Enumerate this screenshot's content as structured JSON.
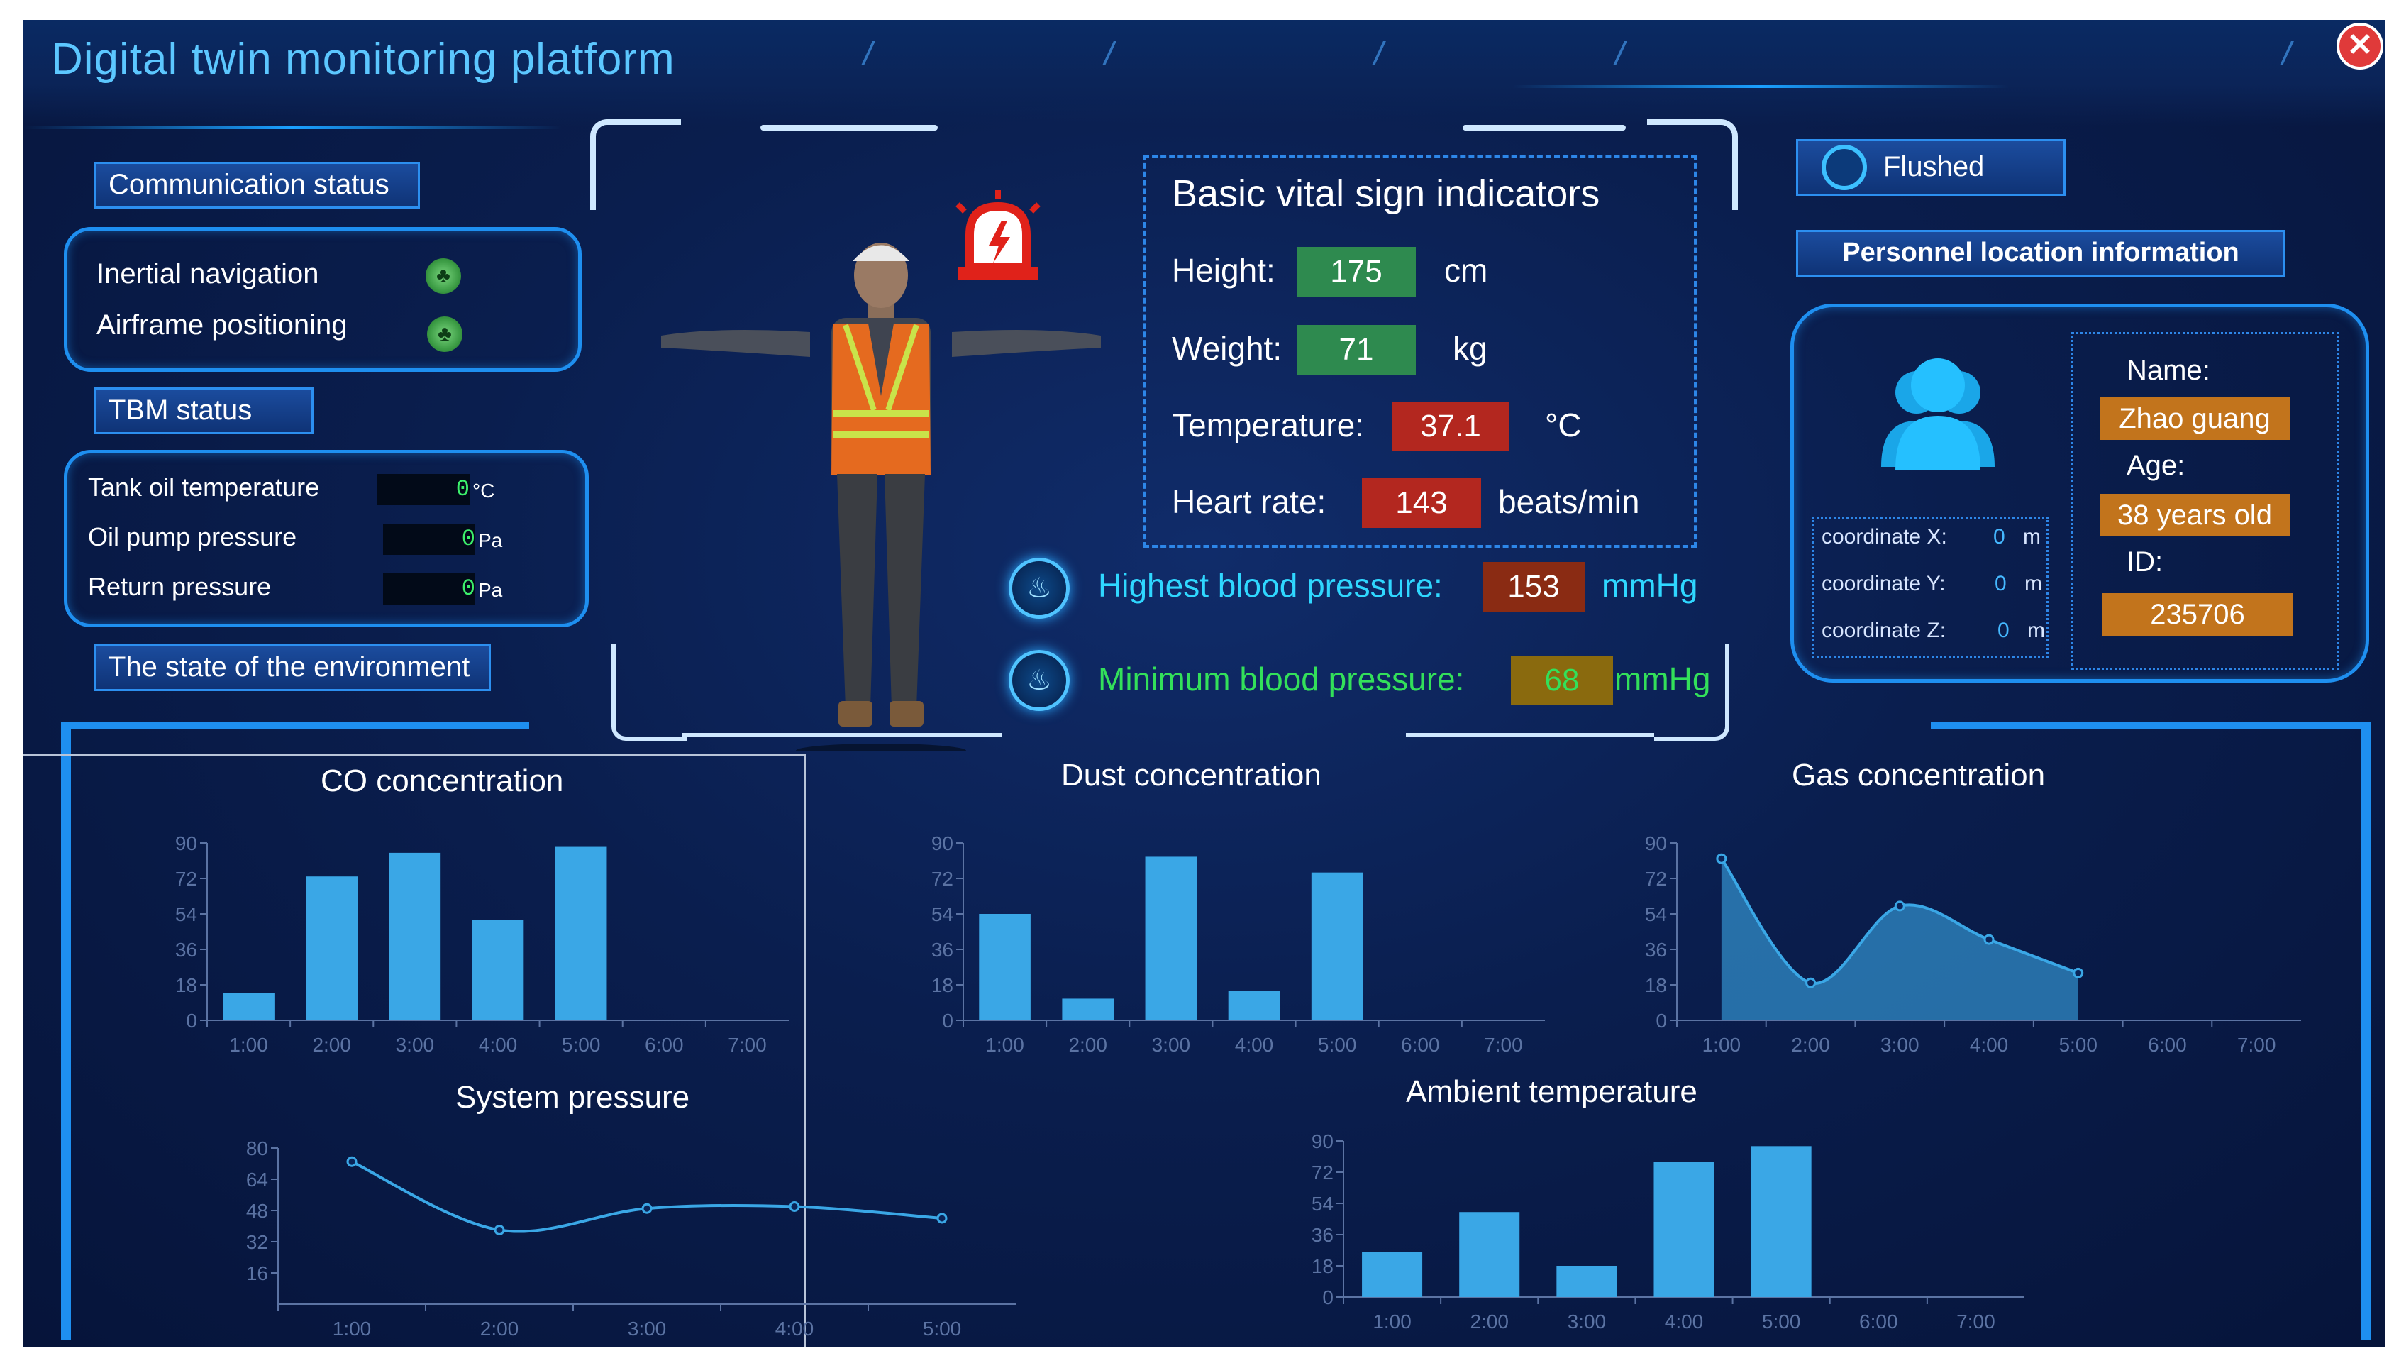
{
  "header": {
    "title": "Digital twin monitoring platform"
  },
  "left": {
    "comm_tab": "Communication status",
    "comm_items": [
      {
        "label": "Inertial navigation",
        "icon": "tree-icon"
      },
      {
        "label": "Airframe positioning",
        "icon": "tree-icon"
      }
    ],
    "tbm_tab": "TBM status",
    "tbm_items": [
      {
        "label": "Tank oil temperature",
        "value": "0",
        "unit": "°C"
      },
      {
        "label": "Oil pump pressure",
        "value": "0",
        "unit": "Pa"
      },
      {
        "label": "Return pressure",
        "value": "0",
        "unit": "Pa"
      }
    ],
    "env_tab": "The state of the environment"
  },
  "vitals": {
    "title": "Basic vital sign indicators",
    "height": {
      "label": "Height:",
      "value": "175",
      "unit": "cm"
    },
    "weight": {
      "label": "Weight:",
      "value": "71",
      "unit": "kg"
    },
    "temperature": {
      "label": "Temperature:",
      "value": "37.1",
      "unit": "°C"
    },
    "heart_rate": {
      "label": "Heart rate:",
      "value": "143",
      "unit": "beats/min"
    },
    "high_bp": {
      "label": "Highest blood pressure:",
      "value": "153",
      "unit": "mmHg"
    },
    "low_bp": {
      "label": "Minimum blood pressure:",
      "value": "68",
      "unit": "mmHg"
    },
    "colors": {
      "ok": "#2e8a4f",
      "alert": "#b3271f",
      "high_bp": "#8a2b13",
      "low_bp": "#8a6a0e",
      "high_text": "#2fd7ff",
      "low_text": "#33e05a"
    }
  },
  "right": {
    "flushed_label": "Flushed",
    "location_tab": "Personnel location information",
    "coords": [
      {
        "label": "coordinate X:",
        "value": "0",
        "unit": "m"
      },
      {
        "label": "coordinate Y:",
        "value": "0",
        "unit": "m"
      },
      {
        "label": "coordinate Z:",
        "value": "0",
        "unit": "m"
      }
    ],
    "name_label": "Name:",
    "name_value": "Zhao guang",
    "age_label": "Age:",
    "age_value": "38 years old",
    "id_label": "ID:",
    "id_value": "235706"
  },
  "chart_data": [
    {
      "id": "co",
      "type": "bar",
      "title": "CO concentration",
      "categories": [
        "1:00",
        "2:00",
        "3:00",
        "4:00",
        "5:00",
        "6:00",
        "7:00"
      ],
      "values": [
        14,
        73,
        85,
        51,
        88,
        null,
        null
      ],
      "yticks": [
        0,
        18,
        36,
        54,
        72,
        90
      ],
      "ylim": [
        0,
        90
      ],
      "color": "#3aa7e6"
    },
    {
      "id": "dust",
      "type": "bar",
      "title": "Dust concentration",
      "categories": [
        "1:00",
        "2:00",
        "3:00",
        "4:00",
        "5:00",
        "6:00",
        "7:00"
      ],
      "values": [
        54,
        11,
        83,
        15,
        75,
        null,
        null
      ],
      "yticks": [
        0,
        18,
        36,
        54,
        72,
        90
      ],
      "ylim": [
        0,
        90
      ],
      "color": "#3aa7e6"
    },
    {
      "id": "gas",
      "type": "area",
      "title": "Gas concentration",
      "categories": [
        "1:00",
        "2:00",
        "3:00",
        "4:00",
        "5:00",
        "6:00",
        "7:00"
      ],
      "values": [
        82,
        19,
        58,
        41,
        24,
        null,
        null
      ],
      "yticks": [
        0,
        18,
        36,
        54,
        72,
        90
      ],
      "ylim": [
        0,
        90
      ],
      "color": "#3aa7e6"
    },
    {
      "id": "pressure",
      "type": "line",
      "title": "System pressure",
      "categories": [
        "1:00",
        "2:00",
        "3:00",
        "4:00",
        "5:00"
      ],
      "values": [
        73,
        38,
        49,
        50,
        44
      ],
      "yticks": [
        16,
        32,
        48,
        64,
        80
      ],
      "ylim": [
        0,
        80
      ],
      "color": "#3aa7e6"
    },
    {
      "id": "ambient",
      "type": "bar",
      "title": "Ambient temperature",
      "categories": [
        "1:00",
        "2:00",
        "3:00",
        "4:00",
        "5:00",
        "6:00",
        "7:00"
      ],
      "values": [
        26,
        49,
        18,
        78,
        87,
        null,
        null
      ],
      "yticks": [
        0,
        18,
        36,
        54,
        72,
        90
      ],
      "ylim": [
        0,
        90
      ],
      "color": "#3aa7e6"
    }
  ]
}
